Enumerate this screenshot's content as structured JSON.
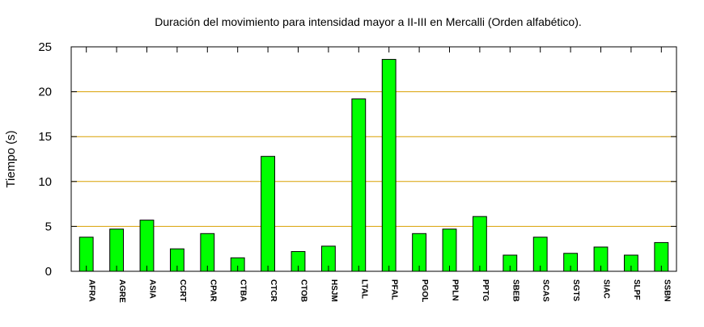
{
  "chart_data": {
    "type": "bar",
    "title": "Duración del movimiento para intensidad mayor a II-III en Mercalli (Orden alfabético).",
    "xlabel": "",
    "ylabel": "Tiempo (s)",
    "ylim": [
      0,
      25
    ],
    "yticks": [
      0,
      5,
      10,
      15,
      20,
      25
    ],
    "grid": "horizontal",
    "bar_color": "#00ff00",
    "grid_color": "#d8a000",
    "categories": [
      "AFRA",
      "AGRE",
      "ASIA",
      "CCRT",
      "CPAR",
      "CTBA",
      "CTCR",
      "CTOB",
      "HSJM",
      "LTAL",
      "PFAL",
      "PGOL",
      "PPLN",
      "PPTG",
      "SBEB",
      "SCAS",
      "SGTS",
      "SIAC",
      "SLPF",
      "SSBN"
    ],
    "values": [
      3.8,
      4.7,
      5.7,
      2.5,
      4.2,
      1.5,
      12.8,
      2.2,
      2.8,
      19.2,
      23.6,
      4.2,
      4.7,
      6.1,
      1.8,
      3.8,
      2.0,
      2.7,
      1.8,
      3.2
    ]
  }
}
